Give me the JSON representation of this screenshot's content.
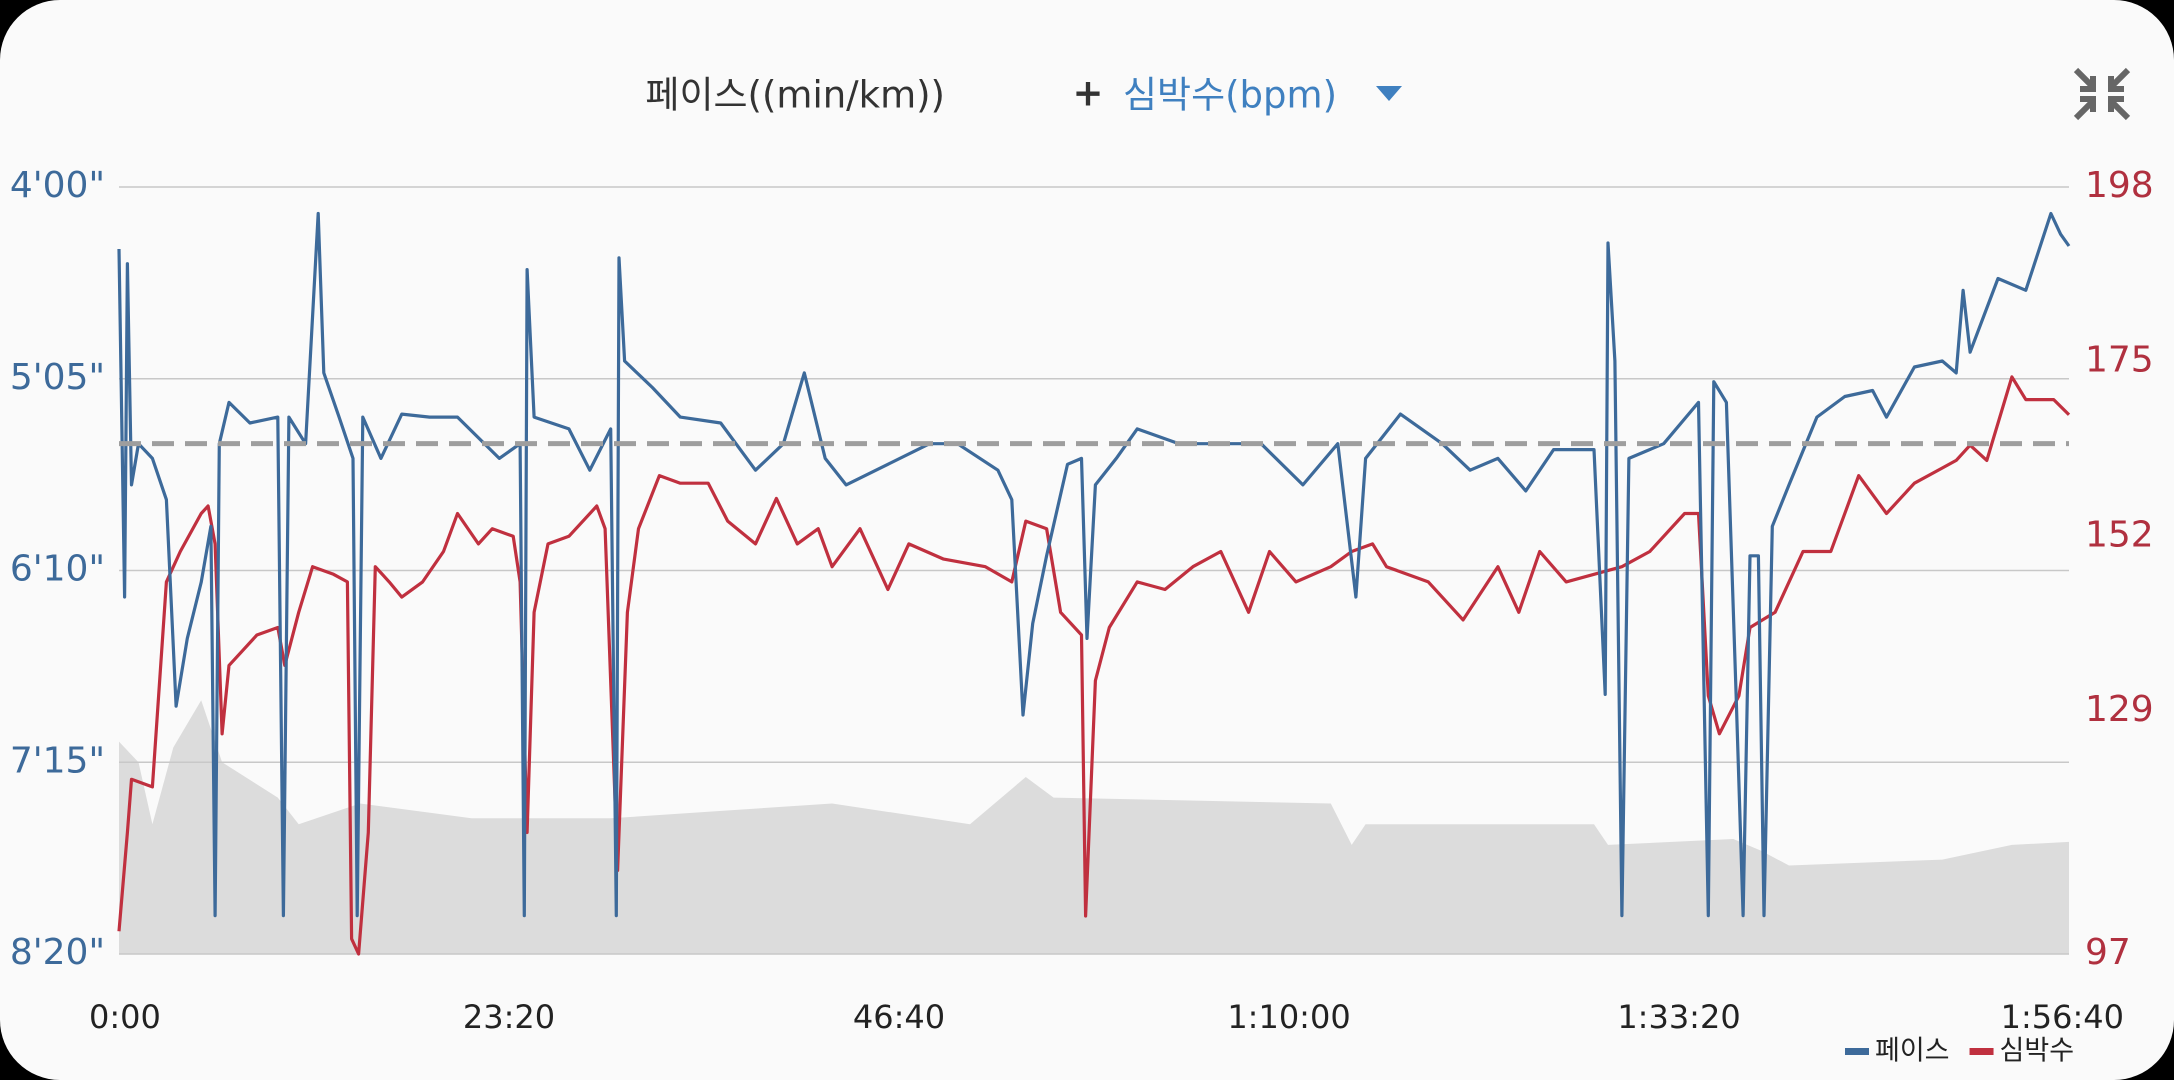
{
  "chart_data": {
    "type": "line",
    "title": "페이스((min/km))",
    "title_joiner": "+",
    "title2": "심박수(bpm)",
    "xlim": [
      0,
      7000
    ],
    "xticks": [
      {
        "value": 0,
        "label": "0:00"
      },
      {
        "value": 1400,
        "label": "23:20"
      },
      {
        "value": 2800,
        "label": "46:40"
      },
      {
        "value": 4200,
        "label": "1:10:00"
      },
      {
        "value": 5600,
        "label": "1:33:20"
      },
      {
        "value": 7000,
        "label": "1:56:40"
      }
    ],
    "ylim": [
      500,
      240
    ],
    "yticks": [
      {
        "value": 240,
        "label": "4'00\""
      },
      {
        "value": 305,
        "label": "5'05\""
      },
      {
        "value": 370,
        "label": "6'10\""
      },
      {
        "value": 435,
        "label": "7'15\""
      },
      {
        "value": 500,
        "label": "8'20\""
      }
    ],
    "y2lim": [
      97,
      198
    ],
    "y2ticks": [
      198,
      175,
      152,
      129,
      97
    ],
    "grid": true,
    "legend": "bottom-right",
    "reference_line": {
      "value": 327,
      "color": "#9e9e9e"
    },
    "area": {
      "color": "#dcdcdc",
      "x": [
        0,
        70,
        120,
        195,
        295,
        370,
        570,
        645,
        865,
        1265,
        1765,
        2560,
        3055,
        3255,
        3355,
        4350,
        4425,
        4475,
        5295,
        5345,
        5795,
        5895,
        5995,
        6545,
        6795,
        7000
      ],
      "values": [
        428,
        435,
        456,
        430,
        414,
        435,
        447,
        456,
        449,
        454,
        454,
        449,
        456,
        440,
        447,
        449,
        463,
        456,
        456,
        463,
        461,
        465,
        470,
        468,
        463,
        462
      ]
    },
    "series": [
      {
        "name": "페이스",
        "color": "#3d6a9a",
        "x": [
          0,
          20,
          30,
          45,
          70,
          120,
          170,
          205,
          245,
          295,
          330,
          345,
          360,
          395,
          470,
          570,
          590,
          610,
          670,
          715,
          735,
          790,
          840,
          855,
          875,
          940,
          1015,
          1115,
          1215,
          1290,
          1365,
          1440,
          1455,
          1465,
          1490,
          1615,
          1690,
          1765,
          1785,
          1795,
          1815,
          1915,
          2015,
          2160,
          2285,
          2385,
          2460,
          2535,
          2610,
          2760,
          2910,
          3010,
          3155,
          3205,
          3245,
          3280,
          3330,
          3405,
          3455,
          3475,
          3505,
          3580,
          3655,
          3805,
          3955,
          4100,
          4250,
          4375,
          4440,
          4475,
          4600,
          4750,
          4850,
          4950,
          5050,
          5150,
          5295,
          5335,
          5345,
          5370,
          5395,
          5420,
          5545,
          5670,
          5705,
          5725,
          5770,
          5805,
          5830,
          5855,
          5885,
          5905,
          5935,
          5995,
          6095,
          6195,
          6295,
          6345,
          6445,
          6545,
          6595,
          6620,
          6645,
          6745,
          6845,
          6935,
          6970,
          7000
        ],
        "values": [
          261,
          379,
          266,
          341,
          327,
          332,
          346,
          416,
          393,
          374,
          355,
          487,
          327,
          313,
          320,
          318,
          487,
          318,
          327,
          249,
          303,
          318,
          332,
          487,
          318,
          332,
          317,
          318,
          318,
          325,
          332,
          327,
          487,
          268,
          318,
          322,
          336,
          322,
          487,
          264,
          299,
          308,
          318,
          320,
          336,
          327,
          303,
          332,
          341,
          334,
          327,
          327,
          336,
          346,
          419,
          388,
          365,
          334,
          332,
          393,
          341,
          332,
          322,
          327,
          327,
          327,
          341,
          327,
          379,
          332,
          317,
          327,
          336,
          332,
          343,
          329,
          329,
          412,
          259,
          299,
          487,
          332,
          327,
          313,
          487,
          306,
          313,
          412,
          487,
          365,
          365,
          487,
          355,
          341,
          318,
          311,
          309,
          318,
          301,
          299,
          303,
          275,
          296,
          271,
          275,
          249,
          256,
          260
        ]
      },
      {
        "name": "심박수",
        "color": "#c0303f",
        "axis": "y2",
        "x": [
          0,
          30,
          45,
          120,
          170,
          220,
          295,
          320,
          345,
          370,
          395,
          445,
          495,
          570,
          595,
          645,
          695,
          770,
          820,
          835,
          860,
          895,
          920,
          970,
          1015,
          1090,
          1165,
          1215,
          1290,
          1340,
          1415,
          1440,
          1465,
          1490,
          1540,
          1615,
          1715,
          1745,
          1790,
          1825,
          1865,
          1940,
          2015,
          2115,
          2185,
          2285,
          2360,
          2435,
          2510,
          2560,
          2660,
          2760,
          2835,
          2960,
          3110,
          3205,
          3255,
          3330,
          3380,
          3455,
          3470,
          3505,
          3555,
          3655,
          3755,
          3855,
          3955,
          4055,
          4130,
          4225,
          4350,
          4425,
          4500,
          4550,
          4700,
          4825,
          4950,
          5025,
          5100,
          5195,
          5395,
          5495,
          5620,
          5670,
          5705,
          5745,
          5815,
          5855,
          5945,
          6045,
          6145,
          6195,
          6245,
          6345,
          6445,
          6545,
          6595,
          6645,
          6705,
          6795,
          6845,
          6945,
          7000
        ],
        "values": [
          100,
          113,
          120,
          119,
          146,
          150,
          155,
          156,
          151,
          126,
          135,
          137,
          139,
          140,
          135,
          142,
          148,
          147,
          146,
          99,
          97,
          113,
          148,
          146,
          144,
          146,
          150,
          155,
          151,
          153,
          152,
          146,
          113,
          142,
          151,
          152,
          156,
          153,
          108,
          142,
          153,
          160,
          159,
          159,
          154,
          151,
          157,
          151,
          153,
          148,
          153,
          145,
          151,
          149,
          148,
          146,
          154,
          153,
          142,
          139,
          102,
          133,
          140,
          146,
          145,
          148,
          150,
          142,
          150,
          146,
          148,
          150,
          151,
          148,
          146,
          141,
          148,
          142,
          150,
          146,
          148,
          150,
          155,
          155,
          131,
          126,
          131,
          140,
          142,
          150,
          150,
          155,
          160,
          155,
          159,
          161,
          162,
          164,
          162,
          173,
          170,
          170,
          168
        ]
      }
    ]
  }
}
